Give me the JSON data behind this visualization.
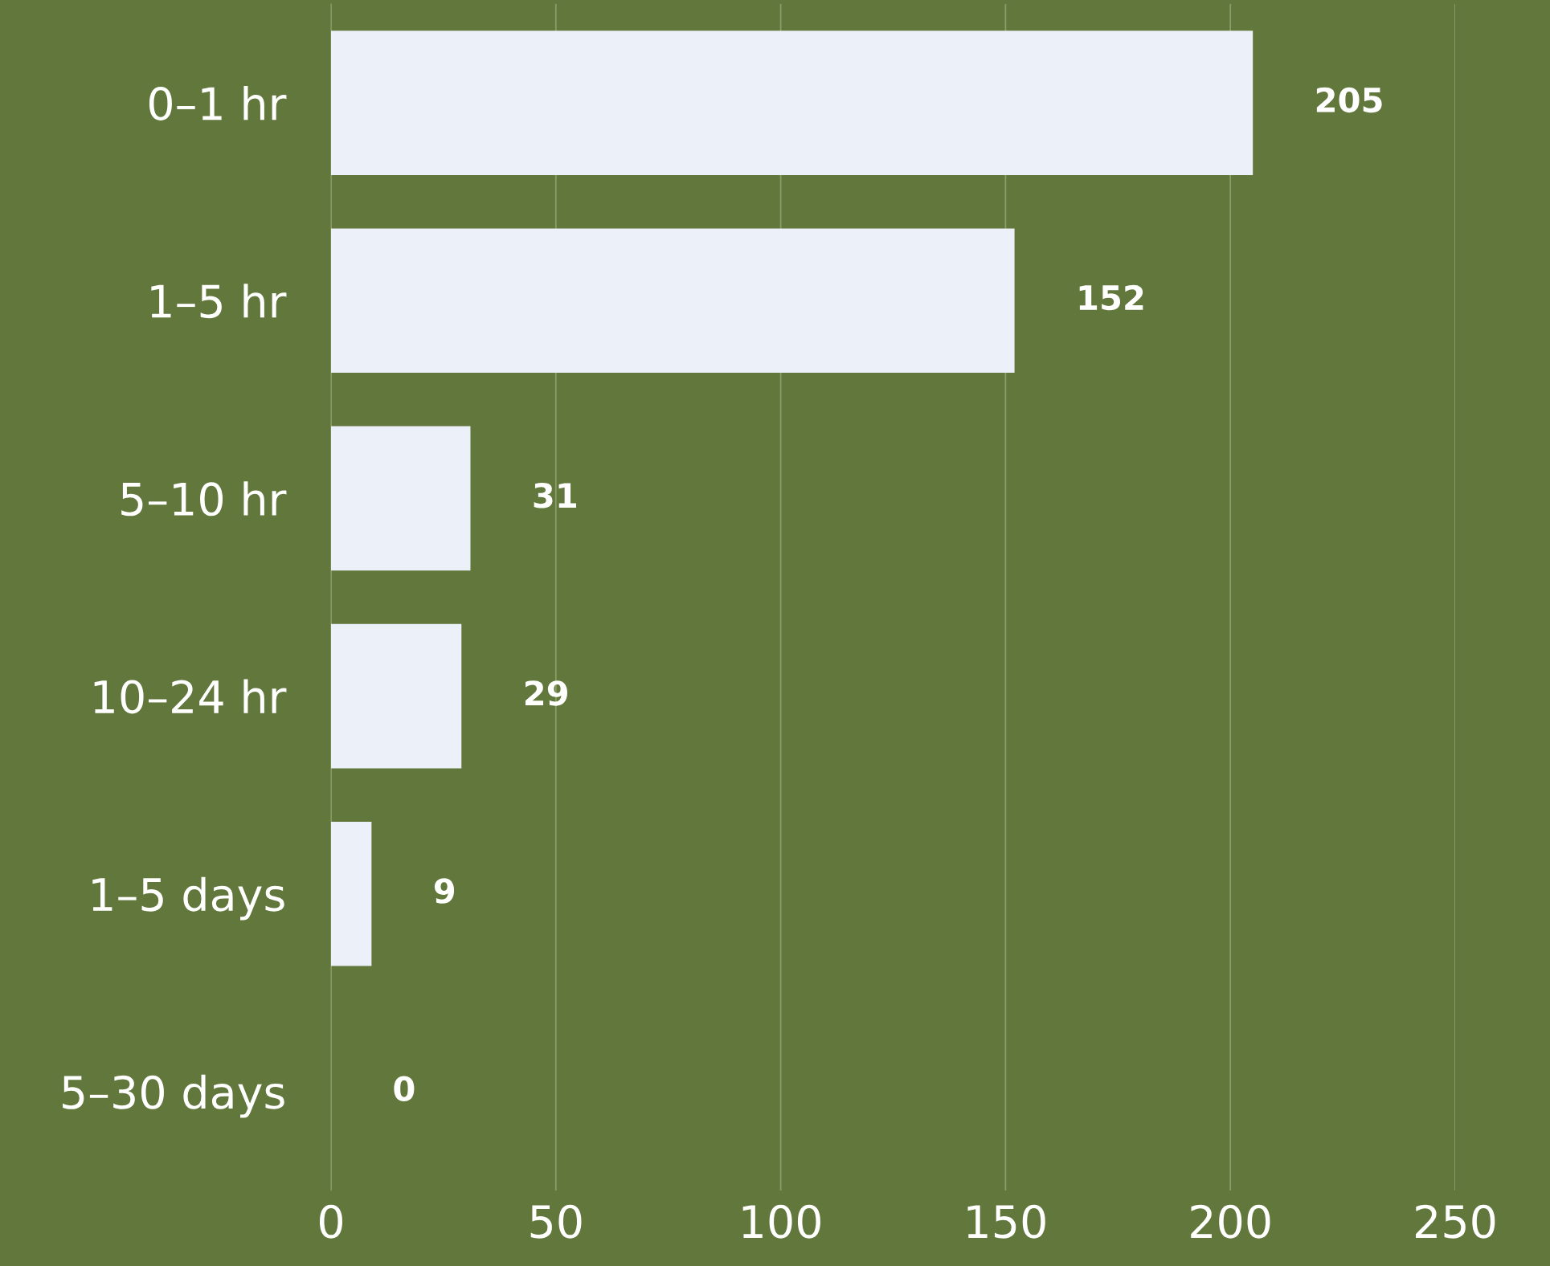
{
  "chart_data": {
    "type": "bar",
    "orientation": "horizontal",
    "categories": [
      "0–1 hr",
      "1–5 hr",
      "5–10 hr",
      "10–24 hr",
      "1–5 days",
      "5–30 days"
    ],
    "values": [
      205,
      152,
      31,
      29,
      9,
      0
    ],
    "color": "#ecf0f9",
    "xlim": [
      0,
      250
    ],
    "xticks": [
      0,
      50,
      100,
      150,
      200,
      250
    ],
    "grid": "x",
    "data_labels": true
  }
}
